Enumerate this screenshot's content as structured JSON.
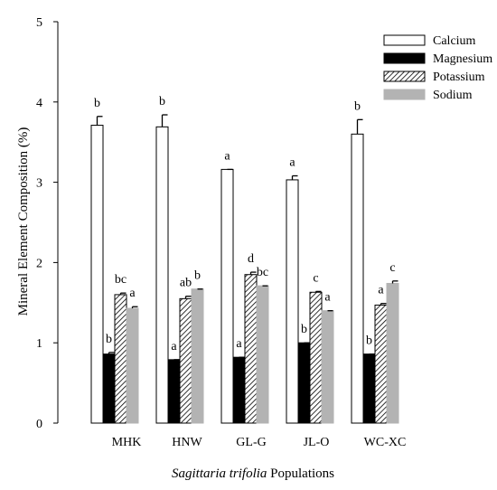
{
  "chart_data": {
    "type": "bar",
    "ylabel": "Mineral Element Composition (%)",
    "xlabel_italic": "Sagittaria trifolia",
    "xlabel_rest": " Populations",
    "ylim": [
      0,
      5
    ],
    "yticks": [
      "0",
      "1",
      "2",
      "3",
      "4",
      "5"
    ],
    "categories": [
      "MHK",
      "HNW",
      "GL-G",
      "JL-O",
      "WC-XC"
    ],
    "legend_position": "top-right",
    "series": [
      {
        "name": "Calcium",
        "pattern": "white",
        "values": [
          3.71,
          3.69,
          3.16,
          3.03,
          3.6
        ],
        "errors": [
          0.11,
          0.15,
          0.0,
          0.05,
          0.18
        ],
        "letters": [
          "b",
          "b",
          "a",
          "a",
          "b"
        ]
      },
      {
        "name": "Magnesium",
        "pattern": "black",
        "values": [
          0.86,
          0.79,
          0.82,
          1.0,
          0.86
        ],
        "errors": [
          0.02,
          0.0,
          0.0,
          0.0,
          0.0
        ],
        "letters": [
          "b",
          "a",
          "a",
          "b",
          "b"
        ]
      },
      {
        "name": "Potassium",
        "pattern": "hatched",
        "values": [
          1.6,
          1.55,
          1.85,
          1.63,
          1.47
        ],
        "errors": [
          0.02,
          0.03,
          0.03,
          0.01,
          0.02
        ],
        "letters": [
          "bc",
          "ab",
          "d",
          "c",
          "a"
        ]
      },
      {
        "name": "Sodium",
        "pattern": "gray",
        "values": [
          1.43,
          1.67,
          1.71,
          1.4,
          1.74
        ],
        "errors": [
          0.02,
          0.0,
          0.0,
          0.0,
          0.03
        ],
        "letters": [
          "a",
          "b",
          "bc",
          "a",
          "c"
        ]
      }
    ]
  }
}
